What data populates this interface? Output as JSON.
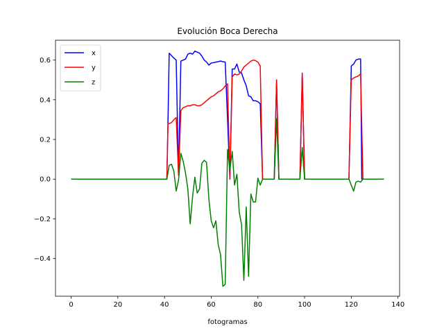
{
  "chart_data": {
    "type": "line",
    "title": "Evolución Boca Derecha",
    "xlabel": "fotogramas",
    "ylabel": "",
    "xlim": [
      -6.7,
      140.7
    ],
    "ylim": [
      -0.59,
      0.7
    ],
    "xticks": [
      0,
      20,
      40,
      60,
      80,
      100,
      120,
      140
    ],
    "yticks": [
      -0.4,
      -0.2,
      0.0,
      0.2,
      0.4,
      0.6
    ],
    "ytick_labels": [
      "−0.4",
      "−0.2",
      "0.0",
      "0.2",
      "0.4",
      "0.6"
    ],
    "grid": false,
    "legend_position": "upper-left",
    "series": [
      {
        "name": "x",
        "color": "#0000ff",
        "points": [
          [
            0,
            0
          ],
          [
            41,
            0
          ],
          [
            41.5,
            0.3
          ],
          [
            42,
            0.635
          ],
          [
            44,
            0.61
          ],
          [
            45,
            0.6
          ],
          [
            46,
            0.02
          ],
          [
            47,
            0.595
          ],
          [
            48,
            0.6
          ],
          [
            49,
            0.605
          ],
          [
            50,
            0.63
          ],
          [
            51,
            0.635
          ],
          [
            52,
            0.63
          ],
          [
            53,
            0.645
          ],
          [
            54,
            0.64
          ],
          [
            55,
            0.635
          ],
          [
            56,
            0.62
          ],
          [
            57,
            0.6
          ],
          [
            58,
            0.59
          ],
          [
            59,
            0.575
          ],
          [
            60,
            0.585
          ],
          [
            61,
            0.587
          ],
          [
            62,
            0.59
          ],
          [
            63,
            0.592
          ],
          [
            64,
            0.595
          ],
          [
            65,
            0.592
          ],
          [
            66,
            0.59
          ],
          [
            67,
            0.3
          ],
          [
            68,
            0.0
          ],
          [
            69,
            0.555
          ],
          [
            70,
            0.555
          ],
          [
            71,
            0.58
          ],
          [
            72,
            0.54
          ],
          [
            73,
            0.535
          ],
          [
            74,
            0.5
          ],
          [
            75,
            0.47
          ],
          [
            76,
            0.42
          ],
          [
            77,
            0.415
          ],
          [
            78,
            0.395
          ],
          [
            79,
            0.395
          ],
          [
            80,
            0.39
          ],
          [
            81,
            0.38
          ],
          [
            82,
            0.0
          ],
          [
            87,
            0.0
          ],
          [
            88,
            0.5
          ],
          [
            89,
            0.0
          ],
          [
            98,
            0.0
          ],
          [
            99,
            0.53
          ],
          [
            100,
            0.0
          ],
          [
            119,
            0.0
          ],
          [
            120,
            0.57
          ],
          [
            121,
            0.58
          ],
          [
            122,
            0.6
          ],
          [
            123,
            0.605
          ],
          [
            124,
            0.605
          ],
          [
            124.5,
            0.0
          ],
          [
            134,
            0.0
          ]
        ]
      },
      {
        "name": "y",
        "color": "#ff0000",
        "points": [
          [
            0,
            0
          ],
          [
            41,
            0
          ],
          [
            41.5,
            0.28
          ],
          [
            42,
            0.28
          ],
          [
            43,
            0.285
          ],
          [
            44,
            0.3
          ],
          [
            45,
            0.31
          ],
          [
            46,
            0.02
          ],
          [
            47,
            0.345
          ],
          [
            48,
            0.36
          ],
          [
            49,
            0.365
          ],
          [
            50,
            0.37
          ],
          [
            51,
            0.37
          ],
          [
            52,
            0.375
          ],
          [
            53,
            0.375
          ],
          [
            54,
            0.37
          ],
          [
            55,
            0.37
          ],
          [
            56,
            0.375
          ],
          [
            57,
            0.385
          ],
          [
            58,
            0.395
          ],
          [
            59,
            0.405
          ],
          [
            60,
            0.415
          ],
          [
            61,
            0.42
          ],
          [
            62,
            0.43
          ],
          [
            63,
            0.44
          ],
          [
            64,
            0.445
          ],
          [
            65,
            0.455
          ],
          [
            66,
            0.47
          ],
          [
            67,
            0.48
          ],
          [
            68,
            0.0
          ],
          [
            69,
            0.515
          ],
          [
            70,
            0.53
          ],
          [
            71,
            0.525
          ],
          [
            72,
            0.53
          ],
          [
            73,
            0.545
          ],
          [
            74,
            0.565
          ],
          [
            75,
            0.575
          ],
          [
            76,
            0.585
          ],
          [
            77,
            0.595
          ],
          [
            78,
            0.6
          ],
          [
            79,
            0.597
          ],
          [
            80,
            0.59
          ],
          [
            81,
            0.57
          ],
          [
            82,
            0.0
          ],
          [
            87,
            0.0
          ],
          [
            88,
            0.5
          ],
          [
            89,
            0.0
          ],
          [
            98,
            0.0
          ],
          [
            99,
            0.535
          ],
          [
            100,
            0.0
          ],
          [
            119,
            0.0
          ],
          [
            120,
            0.5
          ],
          [
            121,
            0.51
          ],
          [
            122,
            0.515
          ],
          [
            123,
            0.52
          ],
          [
            124,
            0.53
          ],
          [
            125,
            0.0
          ],
          [
            134,
            0.0
          ]
        ]
      },
      {
        "name": "z",
        "color": "#008000",
        "points": [
          [
            0,
            0
          ],
          [
            41,
            0
          ],
          [
            42,
            0.07
          ],
          [
            43,
            0.075
          ],
          [
            44,
            0.04
          ],
          [
            45,
            -0.06
          ],
          [
            46,
            -0.005
          ],
          [
            47,
            0.13
          ],
          [
            48,
            0.09
          ],
          [
            49,
            0.03
          ],
          [
            50,
            -0.05
          ],
          [
            51,
            -0.225
          ],
          [
            52,
            -0.09
          ],
          [
            53,
            0.01
          ],
          [
            54,
            -0.07
          ],
          [
            55,
            -0.05
          ],
          [
            56,
            0.08
          ],
          [
            57,
            0.095
          ],
          [
            58,
            0.085
          ],
          [
            59,
            -0.1
          ],
          [
            60,
            -0.21
          ],
          [
            61,
            -0.245
          ],
          [
            62,
            -0.21
          ],
          [
            63,
            -0.33
          ],
          [
            64,
            -0.38
          ],
          [
            65,
            -0.54
          ],
          [
            66,
            -0.53
          ],
          [
            67,
            0.15
          ],
          [
            68,
            0.045
          ],
          [
            69,
            0.14
          ],
          [
            70,
            -0.03
          ],
          [
            71,
            0.025
          ],
          [
            72,
            -0.165
          ],
          [
            73,
            -0.23
          ],
          [
            74,
            -0.51
          ],
          [
            75,
            -0.14
          ],
          [
            76,
            -0.49
          ],
          [
            77,
            -0.075
          ],
          [
            78,
            -0.115
          ],
          [
            79,
            -0.115
          ],
          [
            80,
            0.005
          ],
          [
            81,
            -0.03
          ],
          [
            82,
            0.0
          ],
          [
            87,
            0.0
          ],
          [
            88,
            0.305
          ],
          [
            89,
            0.0
          ],
          [
            98,
            0.0
          ],
          [
            99,
            0.16
          ],
          [
            100,
            0.0
          ],
          [
            119,
            0.0
          ],
          [
            120,
            -0.03
          ],
          [
            121,
            -0.06
          ],
          [
            122,
            -0.015
          ],
          [
            123,
            -0.01
          ],
          [
            124,
            -0.015
          ],
          [
            125,
            0.0
          ],
          [
            134,
            0.0
          ]
        ]
      }
    ]
  }
}
